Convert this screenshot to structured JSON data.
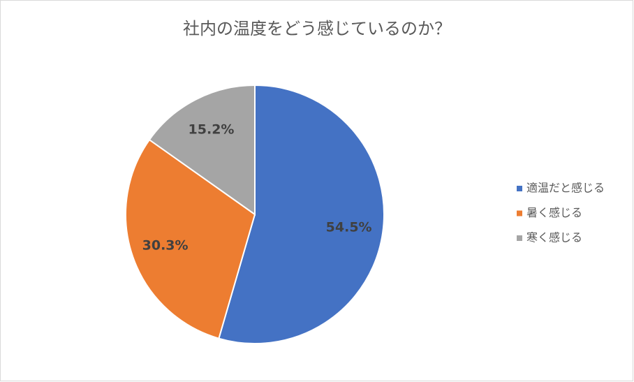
{
  "chart_data": {
    "type": "pie",
    "title": "社内の温度をどう感じているのか？",
    "categories": [
      "適温だと感じる",
      "暑く感じる",
      "寒く感じる"
    ],
    "values": [
      54.5,
      30.3,
      15.2
    ],
    "value_labels": [
      "54.5%",
      "30.3%",
      "15.2%"
    ],
    "colors": [
      "#4472c4",
      "#ed7d31",
      "#a5a5a5"
    ],
    "legend": "right"
  }
}
